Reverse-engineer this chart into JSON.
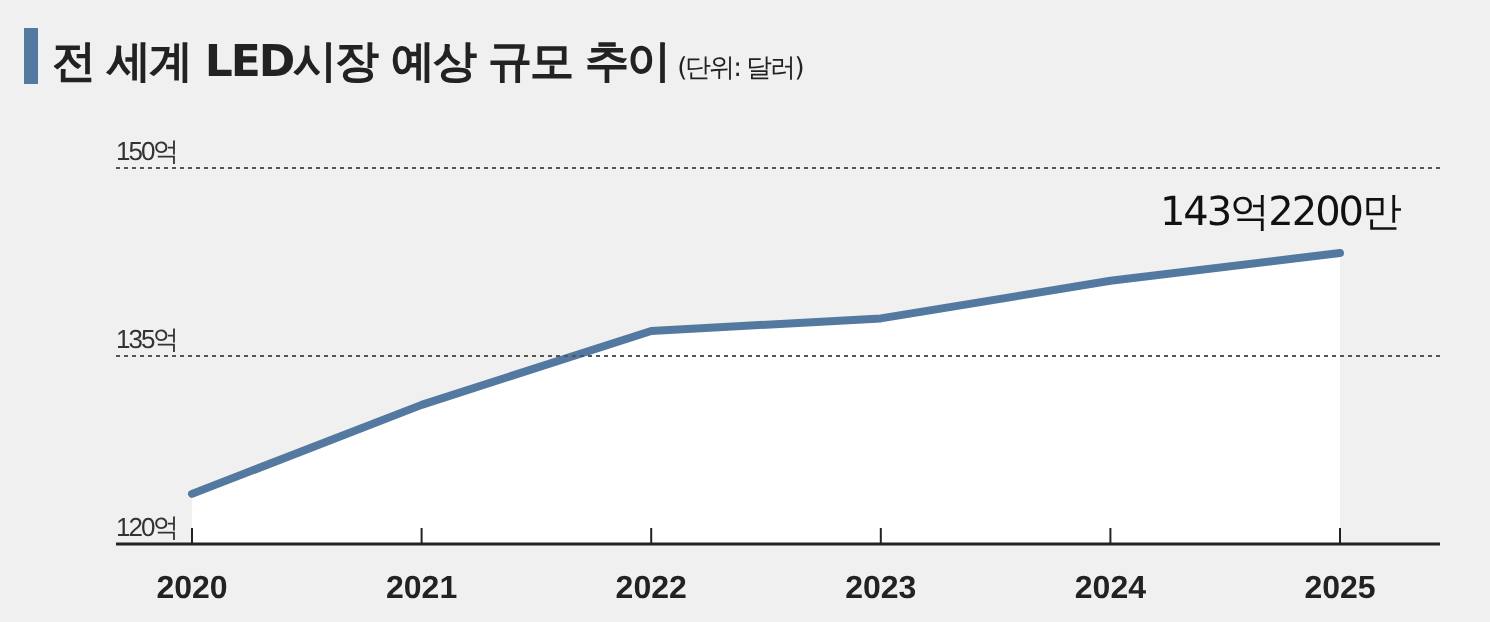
{
  "chart_data": {
    "type": "area",
    "title": "전 세계 LED시장 예상 규모 추이",
    "subtitle": "(단위: 달러)",
    "categories": [
      "2020",
      "2021",
      "2022",
      "2023",
      "2024",
      "2025"
    ],
    "series": [
      {
        "color": "#5479a0",
        "values": [
          124.0,
          131.1,
          137.0,
          138.0,
          141.0,
          143.22
        ],
        "value_labels": [
          null,
          null,
          null,
          null,
          null,
          "143억2200만"
        ]
      }
    ],
    "ylim": [
      120,
      150
    ],
    "yticks": [
      {
        "value": 120,
        "label": "120억"
      },
      {
        "value": 135,
        "label": "135억"
      },
      {
        "value": 150,
        "label": "150억"
      }
    ],
    "grid": "y"
  }
}
